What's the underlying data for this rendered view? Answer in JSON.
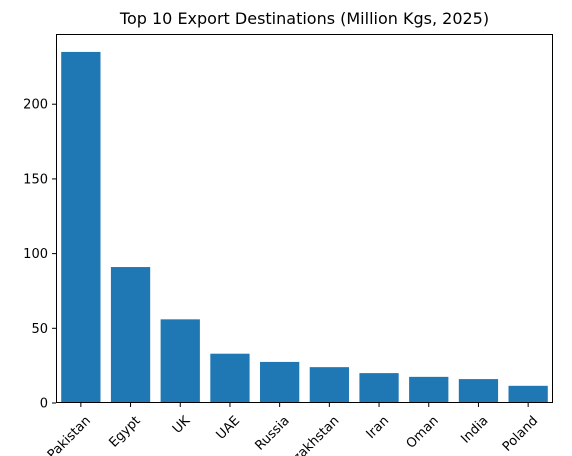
{
  "chart_data": {
    "type": "bar",
    "title": "Top 10 Export Destinations (Million Kgs, 2025)",
    "xlabel": "",
    "ylabel": "",
    "categories": [
      "Pakistan",
      "Egypt",
      "UK",
      "UAE",
      "Russia",
      "Kazakhstan",
      "Iran",
      "Oman",
      "India",
      "Poland"
    ],
    "values": [
      235,
      91,
      56,
      33,
      27.5,
      24,
      20,
      17.5,
      16,
      11.5
    ],
    "ylim": [
      0,
      247
    ],
    "yticks": [
      0,
      50,
      100,
      150,
      200
    ],
    "x_tick_rotation_deg": 45,
    "bar_color": "#1f77b4",
    "grid": false,
    "legend": "none"
  }
}
